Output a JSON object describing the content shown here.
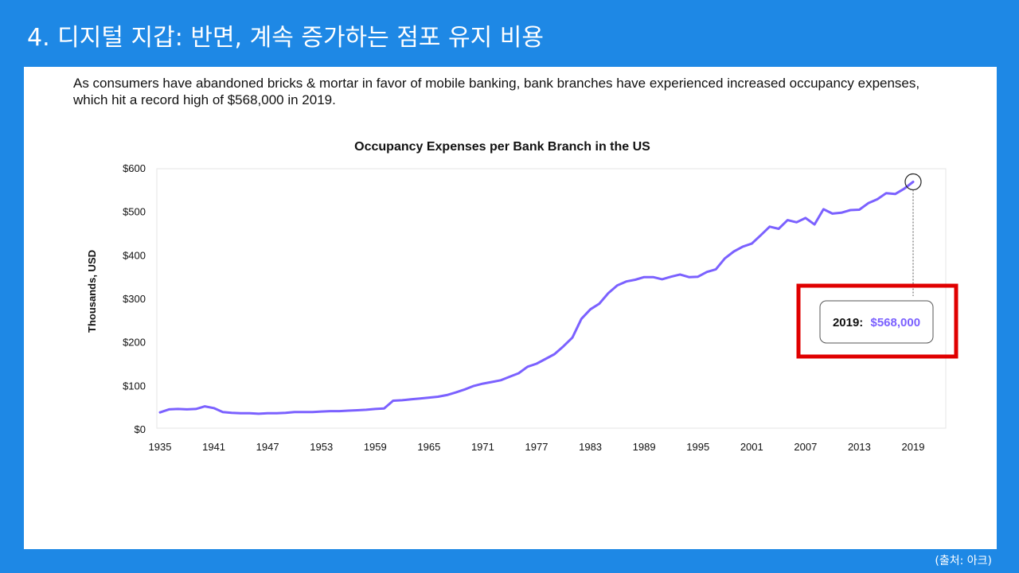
{
  "slide": {
    "title": "4. 디지털 지갑: 반면, 계속 증가하는 점포 유지 비용",
    "source": "(출처: 아크)"
  },
  "caption": "As consumers have abandoned bricks & mortar in favor of mobile banking, bank branches have experienced increased occupancy expenses, which hit a record high of $568,000 in 2019.",
  "colors": {
    "background": "#1e88e5",
    "line": "#7b61ff",
    "highlight_box": "#e00000",
    "callout_value": "#7b61ff"
  },
  "callout": {
    "year_label": "2019:",
    "value_label": "$568,000"
  },
  "chart_data": {
    "type": "line",
    "title": "Occupancy Expenses per Bank Branch in the US",
    "ylabel": "Thousands, USD",
    "xlabel": "",
    "xlim": [
      1935,
      2019
    ],
    "ylim": [
      0,
      600
    ],
    "yticks": [
      {
        "value": 0,
        "label": "$0"
      },
      {
        "value": 100,
        "label": "$100"
      },
      {
        "value": 200,
        "label": "$200"
      },
      {
        "value": 300,
        "label": "$300"
      },
      {
        "value": 400,
        "label": "$400"
      },
      {
        "value": 500,
        "label": "$500"
      },
      {
        "value": 600,
        "label": "$600"
      }
    ],
    "xticks": [
      1935,
      1941,
      1947,
      1953,
      1959,
      1965,
      1971,
      1977,
      1983,
      1989,
      1995,
      2001,
      2007,
      2013,
      2019
    ],
    "grid": false,
    "series": [
      {
        "x": [
          1935,
          1936,
          1937,
          1938,
          1939,
          1940,
          1941,
          1942,
          1943,
          1944,
          1945,
          1946,
          1947,
          1948,
          1949,
          1950,
          1951,
          1952,
          1953,
          1954,
          1955,
          1956,
          1957,
          1958,
          1959,
          1960,
          1961,
          1962,
          1963,
          1964,
          1965,
          1966,
          1967,
          1968,
          1969,
          1970,
          1971,
          1972,
          1973,
          1974,
          1975,
          1976,
          1977,
          1978,
          1979,
          1980,
          1981,
          1982,
          1983,
          1984,
          1985,
          1986,
          1987,
          1988,
          1989,
          1990,
          1991,
          1992,
          1993,
          1994,
          1995,
          1996,
          1997,
          1998,
          1999,
          2000,
          2001,
          2002,
          2003,
          2004,
          2005,
          2006,
          2007,
          2008,
          2009,
          2010,
          2011,
          2012,
          2013,
          2014,
          2015,
          2016,
          2017,
          2018,
          2019
        ],
        "values": [
          38,
          45,
          46,
          45,
          46,
          52,
          48,
          39,
          37,
          36,
          36,
          35,
          36,
          36,
          37,
          39,
          39,
          39,
          40,
          41,
          41,
          42,
          43,
          44,
          46,
          47,
          65,
          66,
          68,
          70,
          72,
          74,
          78,
          84,
          91,
          99,
          104,
          108,
          112,
          120,
          128,
          143,
          150,
          161,
          172,
          190,
          210,
          253,
          275,
          288,
          312,
          330,
          339,
          343,
          349,
          349,
          344,
          350,
          355,
          349,
          350,
          361,
          367,
          392,
          408,
          419,
          426,
          445,
          465,
          460,
          480,
          475,
          485,
          470,
          505,
          495,
          497,
          503,
          504,
          519,
          528,
          542,
          540,
          552,
          568
        ]
      }
    ]
  }
}
